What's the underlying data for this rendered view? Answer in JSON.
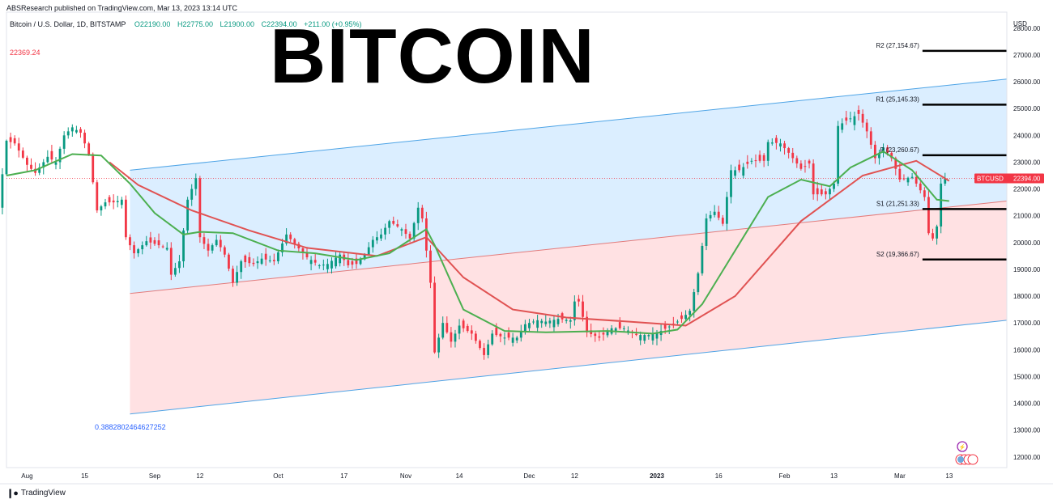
{
  "header": {
    "publisher": "ABSResearch published on TradingView.com, Mar 13, 2023 13:14 UTC",
    "symbol": "Bitcoin / U.S. Dollar, 1D, BITSTAMP",
    "open": "O22190.00",
    "high": "H22775.00",
    "low": "L21900.00",
    "close": "C22394.00",
    "change": "+211.00 (+0.95%)",
    "prev_value": "22369.24"
  },
  "overlay_title": "BITCOIN",
  "fib_label": "0.3882802464627252",
  "footer": {
    "logo_text": "TradingView"
  },
  "colors": {
    "up": "#089981",
    "down": "#f23645",
    "ema_fast": "#4caf50",
    "ema_slow": "#e05252",
    "channel_upper_fill": "#dbeeff",
    "channel_lower_fill": "#ffe1e3",
    "channel_line": "#4ea4e6",
    "mid_line": "#e37b7b"
  },
  "chart_data": {
    "type": "candlestick",
    "y_axis": {
      "unit": "USD",
      "ylim": [
        11600,
        28600
      ],
      "ticks": [
        12000,
        13000,
        14000,
        15000,
        16000,
        17000,
        18000,
        19000,
        20000,
        21000,
        22000,
        23000,
        24000,
        25000,
        26000,
        27000,
        28000
      ],
      "tick_labels": [
        "12000.00",
        "13000.00",
        "14000.00",
        "15000.00",
        "16000.00",
        "17000.00",
        "18000.00",
        "19000.00",
        "20000.00",
        "21000.00",
        "22000.00",
        "23000.00",
        "24000.00",
        "25000.00",
        "26000.00",
        "27000.00",
        "28000.00"
      ]
    },
    "x_axis": {
      "start": "2022-07-27",
      "end": "2023-03-27",
      "ticks": [
        {
          "date": "2022-08-01",
          "label": "Aug"
        },
        {
          "date": "2022-08-15",
          "label": "15"
        },
        {
          "date": "2022-09-01",
          "label": "Sep"
        },
        {
          "date": "2022-09-12",
          "label": "12"
        },
        {
          "date": "2022-10-01",
          "label": "Oct"
        },
        {
          "date": "2022-10-17",
          "label": "17"
        },
        {
          "date": "2022-11-01",
          "label": "Nov"
        },
        {
          "date": "2022-11-14",
          "label": "14"
        },
        {
          "date": "2022-12-01",
          "label": "Dec"
        },
        {
          "date": "2022-12-12",
          "label": "12"
        },
        {
          "date": "2023-01-01",
          "label": "2023"
        },
        {
          "date": "2023-01-16",
          "label": "16"
        },
        {
          "date": "2023-02-01",
          "label": "Feb"
        },
        {
          "date": "2023-02-13",
          "label": "13"
        },
        {
          "date": "2023-03-01",
          "label": "Mar"
        },
        {
          "date": "2023-03-13",
          "label": "13"
        }
      ]
    },
    "price_series": {
      "name": "BTCUSD",
      "closes": [
        [
          "2022-07-26",
          21300
        ],
        [
          "2022-07-28",
          23800
        ],
        [
          "2022-07-30",
          23700
        ],
        [
          "2022-08-02",
          22900
        ],
        [
          "2022-08-04",
          22600
        ],
        [
          "2022-08-07",
          23200
        ],
        [
          "2022-08-09",
          23000
        ],
        [
          "2022-08-11",
          24000
        ],
        [
          "2022-08-13",
          24300
        ],
        [
          "2022-08-15",
          24100
        ],
        [
          "2022-08-17",
          23300
        ],
        [
          "2022-08-19",
          21200
        ],
        [
          "2022-08-21",
          21500
        ],
        [
          "2022-08-23",
          21500
        ],
        [
          "2022-08-25",
          21600
        ],
        [
          "2022-08-26",
          20200
        ],
        [
          "2022-08-28",
          19600
        ],
        [
          "2022-08-31",
          20050
        ],
        [
          "2022-09-02",
          19950
        ],
        [
          "2022-09-05",
          19800
        ],
        [
          "2022-09-06",
          18800
        ],
        [
          "2022-09-08",
          19300
        ],
        [
          "2022-09-10",
          21600
        ],
        [
          "2022-09-12",
          22400
        ],
        [
          "2022-09-13",
          20200
        ],
        [
          "2022-09-15",
          19700
        ],
        [
          "2022-09-17",
          20100
        ],
        [
          "2022-09-19",
          19550
        ],
        [
          "2022-09-21",
          18500
        ],
        [
          "2022-09-23",
          19300
        ],
        [
          "2022-09-26",
          19200
        ],
        [
          "2022-09-28",
          19400
        ],
        [
          "2022-10-01",
          19300
        ],
        [
          "2022-10-04",
          20300
        ],
        [
          "2022-10-06",
          19950
        ],
        [
          "2022-10-09",
          19450
        ],
        [
          "2022-10-12",
          19150
        ],
        [
          "2022-10-14",
          19200
        ],
        [
          "2022-10-17",
          19550
        ],
        [
          "2022-10-19",
          19150
        ],
        [
          "2022-10-21",
          19200
        ],
        [
          "2022-10-23",
          19550
        ],
        [
          "2022-10-25",
          20100
        ],
        [
          "2022-10-27",
          20300
        ],
        [
          "2022-10-29",
          20800
        ],
        [
          "2022-11-01",
          20500
        ],
        [
          "2022-11-03",
          20150
        ],
        [
          "2022-11-05",
          21300
        ],
        [
          "2022-11-06",
          20900
        ],
        [
          "2022-11-08",
          18500
        ],
        [
          "2022-11-09",
          15900
        ],
        [
          "2022-11-11",
          17000
        ],
        [
          "2022-11-13",
          16300
        ],
        [
          "2022-11-15",
          16900
        ],
        [
          "2022-11-18",
          16600
        ],
        [
          "2022-11-21",
          15800
        ],
        [
          "2022-11-23",
          16600
        ],
        [
          "2022-11-26",
          16450
        ],
        [
          "2022-11-29",
          16450
        ],
        [
          "2022-12-01",
          16950
        ],
        [
          "2022-12-04",
          17100
        ],
        [
          "2022-12-06",
          17050
        ],
        [
          "2022-12-09",
          17150
        ],
        [
          "2022-12-12",
          17100
        ],
        [
          "2022-12-13",
          17800
        ],
        [
          "2022-12-14",
          17800
        ],
        [
          "2022-12-16",
          16650
        ],
        [
          "2022-12-19",
          16450
        ],
        [
          "2022-12-22",
          16800
        ],
        [
          "2022-12-25",
          16800
        ],
        [
          "2022-12-28",
          16550
        ],
        [
          "2022-12-31",
          16550
        ],
        [
          "2023-01-03",
          16700
        ],
        [
          "2023-01-06",
          16950
        ],
        [
          "2023-01-08",
          17150
        ],
        [
          "2023-01-10",
          17450
        ],
        [
          "2023-01-12",
          18850
        ],
        [
          "2023-01-14",
          20900
        ],
        [
          "2023-01-16",
          21150
        ],
        [
          "2023-01-18",
          20700
        ],
        [
          "2023-01-20",
          22700
        ],
        [
          "2023-01-22",
          22700
        ],
        [
          "2023-01-25",
          23050
        ],
        [
          "2023-01-28",
          23050
        ],
        [
          "2023-01-29",
          23750
        ],
        [
          "2023-02-01",
          23700
        ],
        [
          "2023-02-03",
          23350
        ],
        [
          "2023-02-06",
          22750
        ],
        [
          "2023-02-08",
          22950
        ],
        [
          "2023-02-09",
          21800
        ],
        [
          "2023-02-12",
          21800
        ],
        [
          "2023-02-14",
          22200
        ],
        [
          "2023-02-15",
          24350
        ],
        [
          "2023-02-17",
          24550
        ],
        [
          "2023-02-20",
          24800
        ],
        [
          "2023-02-22",
          24150
        ],
        [
          "2023-02-24",
          23150
        ],
        [
          "2023-02-26",
          23550
        ],
        [
          "2023-02-28",
          23150
        ],
        [
          "2023-03-02",
          22350
        ],
        [
          "2023-03-05",
          22450
        ],
        [
          "2023-03-08",
          21700
        ],
        [
          "2023-03-09",
          20350
        ],
        [
          "2023-03-10",
          20150
        ],
        [
          "2023-03-11",
          20600
        ],
        [
          "2023-03-12",
          22200
        ],
        [
          "2023-03-13",
          22394
        ]
      ]
    },
    "ema_fast": [
      [
        "2022-07-27",
        22500
      ],
      [
        "2022-08-03",
        22700
      ],
      [
        "2022-08-12",
        23300
      ],
      [
        "2022-08-19",
        23250
      ],
      [
        "2022-08-26",
        22200
      ],
      [
        "2022-09-01",
        21100
      ],
      [
        "2022-09-08",
        20300
      ],
      [
        "2022-09-12",
        20400
      ],
      [
        "2022-09-20",
        20350
      ],
      [
        "2022-10-01",
        19700
      ],
      [
        "2022-10-10",
        19600
      ],
      [
        "2022-10-20",
        19350
      ],
      [
        "2022-10-28",
        19600
      ],
      [
        "2022-11-02",
        20100
      ],
      [
        "2022-11-06",
        20500
      ],
      [
        "2022-11-08",
        19900
      ],
      [
        "2022-11-15",
        17500
      ],
      [
        "2022-11-25",
        16700
      ],
      [
        "2022-12-05",
        16650
      ],
      [
        "2022-12-20",
        16700
      ],
      [
        "2022-12-31",
        16600
      ],
      [
        "2023-01-06",
        16750
      ],
      [
        "2023-01-12",
        17700
      ],
      [
        "2023-01-20",
        19700
      ],
      [
        "2023-01-28",
        21700
      ],
      [
        "2023-02-05",
        22350
      ],
      [
        "2023-02-12",
        22100
      ],
      [
        "2023-02-17",
        22800
      ],
      [
        "2023-02-25",
        23400
      ],
      [
        "2023-03-04",
        22700
      ],
      [
        "2023-03-10",
        21600
      ],
      [
        "2023-03-13",
        21550
      ]
    ],
    "ema_slow": [
      [
        "2022-08-21",
        23000
      ],
      [
        "2022-08-28",
        22150
      ],
      [
        "2022-09-10",
        21200
      ],
      [
        "2022-09-24",
        20450
      ],
      [
        "2022-10-08",
        19800
      ],
      [
        "2022-10-25",
        19500
      ],
      [
        "2022-11-06",
        20200
      ],
      [
        "2022-11-15",
        18700
      ],
      [
        "2022-11-27",
        17500
      ],
      [
        "2022-12-10",
        17200
      ],
      [
        "2022-12-25",
        17050
      ],
      [
        "2023-01-08",
        16900
      ],
      [
        "2023-01-20",
        18000
      ],
      [
        "2023-02-05",
        20800
      ],
      [
        "2023-02-20",
        22500
      ],
      [
        "2023-03-05",
        23050
      ],
      [
        "2023-03-13",
        22300
      ]
    ],
    "price_label": {
      "name": "BTCUSD",
      "value": "22394.00"
    },
    "current_line_price": 22394,
    "pivots": [
      {
        "label": "R2 (27,154.67)",
        "value": 27154.67
      },
      {
        "label": "R1 (25,145.33)",
        "value": 25145.33
      },
      {
        "label": "P (23,260.67)",
        "value": 23260.67
      },
      {
        "label": "S1 (21,251.33)",
        "value": 21251.33
      },
      {
        "label": "S2 (19,366.67)",
        "value": 19366.67
      }
    ],
    "pivot_start_date": "2023-03-01",
    "pivot_end_date": "2023-03-27",
    "channel": {
      "start_date": "2022-08-26",
      "end_date": "2023-03-27",
      "upper": [
        22700,
        26100
      ],
      "mid": [
        18100,
        21550
      ],
      "lower": [
        13600,
        17100
      ]
    }
  }
}
